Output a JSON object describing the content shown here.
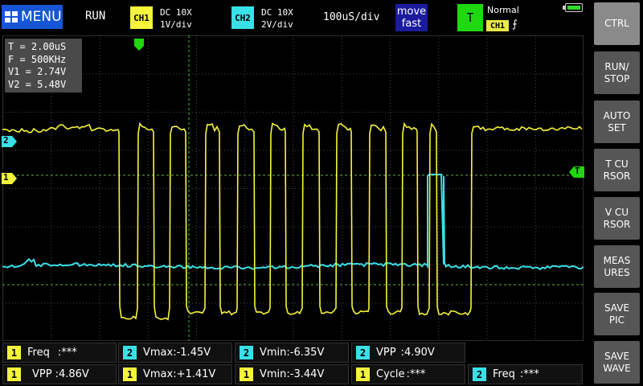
{
  "colors": {
    "ch1": "#f5f53c",
    "ch2": "#3ae0e8",
    "trigger": "#1fd80f",
    "menu_bg": "#1656d6",
    "button_bg": "#565656",
    "grid": "#5a5a5a"
  },
  "topbar": {
    "menu_label": "MENU",
    "menu_icon": "grid-menu-icon",
    "run_state": "RUN",
    "ch1": {
      "badge": "CH1",
      "coupling": "DC 10X",
      "scale": "1V/div"
    },
    "ch2": {
      "badge": "CH2",
      "coupling": "DC 10X",
      "scale": "2V/div"
    },
    "timebase": "100uS/div",
    "move_line1": "move",
    "move_line2": "fast",
    "trigger_badge": "T",
    "trigger_mode": "Normal",
    "trigger_source": "CH1",
    "trigger_edge": "⨍",
    "battery_icon": "battery-icon"
  },
  "right_buttons": [
    {
      "label": "CTRL"
    },
    {
      "label": "RUN/\nSTOP"
    },
    {
      "label": "AUTO\nSET"
    },
    {
      "label": "T CU\nRSOR"
    },
    {
      "label": "V CU\nRSOR"
    },
    {
      "label": "MEAS\nURES"
    },
    {
      "label": "SAVE\nPIC"
    },
    {
      "label": "SAVE\nWAVE"
    }
  ],
  "cursor_readout": {
    "t": "T = 2.00uS",
    "f": "F = 500KHz",
    "v1": "V1 = 2.74V",
    "v2": "V2 = 5.48V"
  },
  "channel_markers": {
    "ch2": "2",
    "ch1": "1",
    "trigger": "T"
  },
  "measurements": {
    "row1": [
      {
        "ch": "1",
        "label": "Freq",
        "value": ":***"
      },
      {
        "ch": "2",
        "label": "Vmax",
        "value": ":-1.45V"
      },
      {
        "ch": "2",
        "label": "Vmin",
        "value": ":-6.35V"
      },
      {
        "ch": "2",
        "label": "VPP",
        "value": ":4.90V"
      }
    ],
    "row2": [
      {
        "ch": "1",
        "label": "VPP",
        "value": ":4.86V"
      },
      {
        "ch": "1",
        "label": "Vmax",
        "value": ":+1.41V"
      },
      {
        "ch": "1",
        "label": "Vmin",
        "value": ":-3.44V"
      },
      {
        "ch": "1",
        "label": "Cycle",
        "value": ":***"
      },
      {
        "ch": "2",
        "label": "Freq",
        "value": ":***"
      }
    ]
  }
}
